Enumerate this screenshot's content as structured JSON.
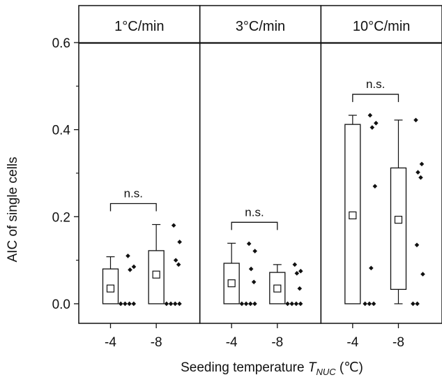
{
  "chart_data": {
    "type": "box",
    "ylabel": "AIC of single cells",
    "xlabel_prefix": "Seeding temperature ",
    "xlabel_symbol": "T",
    "xlabel_subscript": "NUC",
    "xlabel_unit": " (℃)",
    "ylim": [
      -0.045,
      0.685
    ],
    "yticks": [
      0.0,
      0.2,
      0.4,
      0.6
    ],
    "ytick_labels": [
      "0.0",
      "0.2",
      "0.4",
      "0.6"
    ],
    "grid": false,
    "panels": [
      {
        "title": "1°C/min",
        "significance": "n.s.",
        "groups": [
          {
            "category": "-4",
            "q1": 0.0,
            "q3": 0.08,
            "mean": 0.035,
            "whisker_low": 0.0,
            "whisker_high": 0.108,
            "points": [
              0.11,
              0.085,
              0.078,
              0.0,
              0.0,
              0.0,
              0.0
            ]
          },
          {
            "category": "-8",
            "q1": 0.0,
            "q3": 0.122,
            "mean": 0.067,
            "whisker_low": 0.0,
            "whisker_high": 0.182,
            "points": [
              0.18,
              0.142,
              0.1,
              0.09,
              0.0,
              0.0,
              0.0,
              0.0
            ]
          }
        ]
      },
      {
        "title": "3°C/min",
        "significance": "n.s.",
        "groups": [
          {
            "category": "-4",
            "q1": 0.0,
            "q3": 0.093,
            "mean": 0.047,
            "whisker_low": 0.0,
            "whisker_high": 0.139,
            "points": [
              0.138,
              0.121,
              0.08,
              0.05,
              0.0,
              0.0,
              0.0,
              0.0
            ]
          },
          {
            "category": "-8",
            "q1": 0.0,
            "q3": 0.072,
            "mean": 0.035,
            "whisker_low": 0.0,
            "whisker_high": 0.09,
            "points": [
              0.09,
              0.075,
              0.07,
              0.035,
              0.0,
              0.0,
              0.0,
              0.0
            ]
          }
        ]
      },
      {
        "title": "10°C/min",
        "significance": "n.s.",
        "groups": [
          {
            "category": "-4",
            "q1": 0.0,
            "q3": 0.412,
            "mean": 0.203,
            "whisker_low": 0.0,
            "whisker_high": 0.433,
            "points": [
              0.433,
              0.415,
              0.405,
              0.27,
              0.082,
              0.0,
              0.0,
              0.0
            ]
          },
          {
            "category": "-8",
            "q1": 0.033,
            "q3": 0.312,
            "mean": 0.193,
            "whisker_low": 0.0,
            "whisker_high": 0.422,
            "points": [
              0.422,
              0.321,
              0.302,
              0.29,
              0.135,
              0.068,
              0.0,
              0.0
            ]
          }
        ]
      }
    ]
  }
}
